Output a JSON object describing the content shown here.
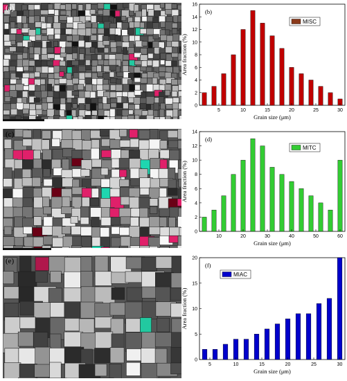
{
  "panels": [
    {
      "letter": "(a)",
      "style": "dark"
    },
    {
      "letter": "(c)",
      "style": "light"
    },
    {
      "letter": "(e)",
      "style": "light"
    }
  ],
  "chart_data": [
    {
      "type": "bar",
      "panel": "(b)",
      "legend": "MISC",
      "bar_color": "#c00000",
      "legend_color": "#8b3a1a",
      "xlabel": "Grain size (μm)",
      "ylabel": "Area fraction (%)",
      "x": [
        2,
        4,
        6,
        8,
        10,
        12,
        14,
        16,
        18,
        20,
        22,
        24,
        26,
        28,
        30
      ],
      "values": [
        2,
        3,
        5,
        8,
        12,
        15,
        13,
        11,
        9,
        6,
        5,
        4,
        3,
        2,
        1
      ],
      "xlim": [
        1,
        31
      ],
      "ylim": [
        0,
        16
      ],
      "xticks": [
        5,
        10,
        15,
        20,
        25,
        30
      ],
      "yticks": [
        0,
        2,
        4,
        6,
        8,
        10,
        12,
        14,
        16
      ],
      "legend_position": "top-right",
      "grid": false
    },
    {
      "type": "bar",
      "panel": "(d)",
      "legend": "MITC",
      "bar_color": "#33cc33",
      "legend_color": "#33cc33",
      "xlabel": "Grain size (μm)",
      "ylabel": "Area fraction (%)",
      "x": [
        4,
        8,
        12,
        16,
        20,
        24,
        28,
        32,
        36,
        40,
        44,
        48,
        52,
        56,
        60
      ],
      "values": [
        2,
        3,
        5,
        8,
        10,
        13,
        12,
        9,
        8,
        7,
        6,
        5,
        4,
        3,
        10
      ],
      "xlim": [
        2,
        62
      ],
      "ylim": [
        0,
        14
      ],
      "xticks": [
        10,
        20,
        30,
        40,
        50,
        60
      ],
      "yticks": [
        0,
        2,
        4,
        6,
        8,
        10,
        12,
        14
      ],
      "legend_position": "top-right",
      "grid": false
    },
    {
      "type": "bar",
      "panel": "(f)",
      "legend": "MIAC",
      "bar_color": "#0000cc",
      "legend_color": "#0000cc",
      "xlabel": "Grain size (μm)",
      "ylabel": "Area fraction (%)",
      "x": [
        4,
        6,
        8,
        10,
        12,
        14,
        16,
        18,
        20,
        22,
        24,
        26,
        28,
        30
      ],
      "values": [
        2,
        2,
        3,
        4,
        4,
        5,
        6,
        7,
        8,
        9,
        9,
        11,
        12,
        20
      ],
      "xlim": [
        3,
        31
      ],
      "ylim": [
        0,
        20
      ],
      "xticks": [
        5,
        10,
        15,
        20,
        25,
        30
      ],
      "yticks": [
        0,
        5,
        10,
        15,
        20
      ],
      "legend_position": "top-left",
      "grid": false
    }
  ]
}
